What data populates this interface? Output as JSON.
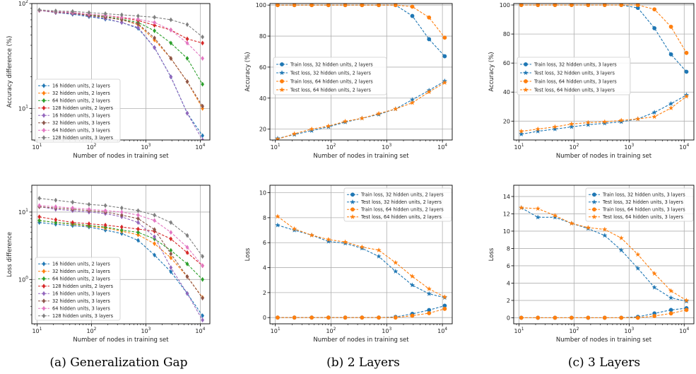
{
  "captions": [
    "(a) Generalization Gap",
    "(b) 2 Layers",
    "(c) 3 Layers"
  ],
  "chart_data": [
    {
      "id": "acc-gap",
      "type": "line",
      "xlabel": "Number of nodes in training set",
      "ylabel": "Accuracy difference (%)",
      "xscale": "log",
      "yscale": "log",
      "xlim": [
        8,
        15000
      ],
      "ylim": [
        5,
        100
      ],
      "x_ticks": [
        "10^1",
        "10^2",
        "10^3",
        "10^4"
      ],
      "y_ticks": [
        "10^1",
        "10^2"
      ],
      "legend_position": "lower-left",
      "x": [
        11,
        22,
        45,
        90,
        180,
        360,
        720,
        1440,
        2880,
        5760,
        11000
      ],
      "series": [
        {
          "name": "16 hidden units, 2 layers",
          "color": "#1f77b4",
          "marker": "diamond",
          "values": [
            86,
            82,
            79,
            75,
            71,
            66,
            58,
            38,
            20,
            9,
            5.5
          ]
        },
        {
          "name": "32 hidden units, 2 layers",
          "color": "#ff7f0e",
          "marker": "diamond",
          "values": [
            86,
            83,
            81,
            77,
            74,
            70,
            63,
            45,
            30,
            18,
            10
          ]
        },
        {
          "name": "64 hidden units, 2 layers",
          "color": "#2ca02c",
          "marker": "diamond",
          "values": [
            86,
            83,
            81,
            78,
            75,
            71,
            66,
            55,
            42,
            30,
            17
          ]
        },
        {
          "name": "128 hidden units, 2 layers",
          "color": "#d62728",
          "marker": "diamond",
          "values": [
            86,
            84,
            82,
            79,
            77,
            73,
            69,
            62,
            56,
            46,
            42
          ]
        },
        {
          "name": "16 hidden units, 3 layers",
          "color": "#9467bd",
          "marker": "diamond",
          "values": [
            86,
            82,
            80,
            76,
            72,
            66,
            59,
            38,
            20,
            9,
            5
          ]
        },
        {
          "name": "32 hidden units, 3 layers",
          "color": "#8c564b",
          "marker": "diamond",
          "values": [
            86,
            83,
            81,
            77,
            74,
            70,
            64,
            47,
            30,
            18,
            10.5
          ]
        },
        {
          "name": "64 hidden units, 3 layers",
          "color": "#e377c2",
          "marker": "diamond",
          "values": [
            86,
            84,
            82,
            79,
            77,
            74,
            71,
            66,
            56,
            42,
            30
          ]
        },
        {
          "name": "128 hidden units, 3 layers",
          "color": "#7f7f7f",
          "marker": "diamond",
          "values": [
            87,
            85,
            84,
            82,
            80,
            78,
            76,
            74,
            70,
            63,
            48
          ]
        }
      ]
    },
    {
      "id": "acc-2",
      "type": "line",
      "xlabel": "Number of nodes in training set",
      "ylabel": "Accuracy (%)",
      "xscale": "log",
      "xlim": [
        8,
        15000
      ],
      "ylim": [
        13,
        101
      ],
      "x_ticks": [
        "10^1",
        "10^2",
        "10^3",
        "10^4"
      ],
      "y_ticks": [
        20,
        40,
        60,
        80,
        100
      ],
      "legend_position": "center-left",
      "x": [
        11,
        22,
        45,
        90,
        180,
        360,
        720,
        1440,
        2880,
        5760,
        11000
      ],
      "series": [
        {
          "name": "Train loss, 32 hidden units, 2 layers",
          "color": "#1f77b4",
          "marker": "circle",
          "values": [
            100,
            100,
            100,
            100,
            100,
            100,
            100,
            100,
            93,
            78,
            67
          ]
        },
        {
          "name": "Test loss, 32 hidden units, 2 layers",
          "color": "#1f77b4",
          "marker": "star",
          "values": [
            14,
            16.5,
            19,
            21.5,
            24.5,
            27,
            29.5,
            33,
            39,
            45,
            51
          ]
        },
        {
          "name": "Train loss, 64 hidden units, 2 layers",
          "color": "#ff7f0e",
          "marker": "circle",
          "values": [
            100,
            100,
            100,
            100,
            100,
            100,
            100,
            100,
            99,
            92,
            79
          ]
        },
        {
          "name": "Test loss, 64 hidden units, 2 layers",
          "color": "#ff7f0e",
          "marker": "star",
          "values": [
            13.5,
            17,
            20,
            22,
            25,
            27,
            30,
            33,
            37,
            44,
            50
          ]
        }
      ]
    },
    {
      "id": "acc-3",
      "type": "line",
      "xlabel": "Number of nodes in training set",
      "ylabel": "Accuracy (%)",
      "xscale": "log",
      "xlim": [
        8,
        15000
      ],
      "ylim": [
        7,
        101
      ],
      "x_ticks": [
        "10^1",
        "10^2",
        "10^3",
        "10^4"
      ],
      "y_ticks": [
        20,
        40,
        60,
        80,
        100
      ],
      "legend_position": "center-left",
      "x": [
        11,
        22,
        45,
        90,
        180,
        360,
        720,
        1440,
        2880,
        5760,
        11000
      ],
      "series": [
        {
          "name": "Train loss, 32 hidden units, 3 layers",
          "color": "#1f77b4",
          "marker": "circle",
          "values": [
            100,
            100,
            100,
            100,
            100,
            100,
            100,
            98,
            84,
            66,
            54
          ]
        },
        {
          "name": "Test loss, 32 hidden units, 3 layers",
          "color": "#1f77b4",
          "marker": "star",
          "values": [
            11,
            13,
            14.5,
            16,
            17.5,
            18.5,
            19.5,
            21.5,
            26,
            32,
            38
          ]
        },
        {
          "name": "Train loss, 64 hidden units, 3 layers",
          "color": "#ff7f0e",
          "marker": "circle",
          "values": [
            100,
            100,
            100,
            100,
            100,
            100,
            100,
            100,
            97,
            85,
            67
          ]
        },
        {
          "name": "Test loss, 64 hidden units, 3 layers",
          "color": "#ff7f0e",
          "marker": "star",
          "values": [
            13,
            14.5,
            16,
            18,
            19,
            19.5,
            20.5,
            21.5,
            23,
            29,
            37
          ]
        }
      ]
    },
    {
      "id": "loss-gap",
      "type": "line",
      "xlabel": "Number of nodes in training set",
      "ylabel": "Loss difference",
      "xscale": "log",
      "yscale": "log",
      "xlim": [
        8,
        15000
      ],
      "ylim": [
        0.22,
        25
      ],
      "x_ticks": [
        "10^1",
        "10^2",
        "10^3",
        "10^4"
      ],
      "y_ticks": [
        "10^0",
        "10^1"
      ],
      "legend_position": "lower-left",
      "x": [
        11,
        22,
        45,
        90,
        180,
        360,
        720,
        1440,
        2880,
        5760,
        11000
      ],
      "series": [
        {
          "name": "16 hidden units, 2 layers",
          "color": "#1f77b4",
          "marker": "diamond",
          "values": [
            7,
            6.6,
            6.3,
            6,
            5.4,
            4.8,
            3.8,
            2.3,
            1.3,
            0.62,
            0.29
          ]
        },
        {
          "name": "32 hidden units, 2 layers",
          "color": "#ff7f0e",
          "marker": "diamond",
          "values": [
            7.5,
            7,
            6.6,
            6.2,
            5.8,
            5.2,
            4.6,
            3.4,
            2.1,
            1.1,
            0.54
          ]
        },
        {
          "name": "64 hidden units, 2 layers",
          "color": "#2ca02c",
          "marker": "diamond",
          "values": [
            7.5,
            7,
            6.7,
            6.3,
            6,
            5.4,
            5,
            4,
            2.7,
            1.7,
            1
          ]
        },
        {
          "name": "128 hidden units, 2 layers",
          "color": "#d62728",
          "marker": "diamond",
          "values": [
            8.5,
            7.7,
            7,
            6.7,
            6.4,
            6,
            5.6,
            5.2,
            4,
            2.5,
            1.6
          ]
        },
        {
          "name": "16 hidden units, 3 layers",
          "color": "#9467bd",
          "marker": "diamond",
          "values": [
            12,
            11,
            10.5,
            10,
            9.5,
            8.5,
            7,
            4.3,
            1.5,
            0.62,
            0.25
          ]
        },
        {
          "name": "32 hidden units, 3 layers",
          "color": "#8c564b",
          "marker": "diamond",
          "values": [
            12,
            11.5,
            11,
            10.5,
            10,
            9,
            8,
            5.5,
            2.4,
            1.1,
            0.53
          ]
        },
        {
          "name": "64 hidden units, 3 layers",
          "color": "#e377c2",
          "marker": "diamond",
          "values": [
            12.5,
            12,
            11.5,
            11,
            10.5,
            10,
            9,
            7.5,
            5,
            3,
            1.6
          ]
        },
        {
          "name": "128 hidden units, 3 layers",
          "color": "#7f7f7f",
          "marker": "diamond",
          "values": [
            16,
            15,
            14,
            13,
            12.5,
            11.5,
            10.5,
            9,
            7,
            4.5,
            2.2
          ]
        }
      ]
    },
    {
      "id": "loss-2",
      "type": "line",
      "xlabel": "Number of nodes in training set",
      "ylabel": "Loss",
      "xscale": "log",
      "xlim": [
        8,
        15000
      ],
      "ylim": [
        -0.5,
        10.6
      ],
      "x_ticks": [
        "10^1",
        "10^2",
        "10^3",
        "10^4"
      ],
      "y_ticks": [
        0,
        2,
        4,
        6,
        8,
        10
      ],
      "legend_position": "top-right",
      "x": [
        11,
        22,
        45,
        90,
        180,
        360,
        720,
        1440,
        2880,
        5760,
        11000
      ],
      "series": [
        {
          "name": "Train loss, 32 hidden units, 2 layers",
          "color": "#1f77b4",
          "marker": "circle",
          "values": [
            0,
            0,
            0,
            0,
            0,
            0,
            0,
            0.05,
            0.3,
            0.6,
            0.95
          ]
        },
        {
          "name": "Test loss, 32 hidden units, 2 layers",
          "color": "#1f77b4",
          "marker": "star",
          "values": [
            7.4,
            7,
            6.6,
            6.1,
            5.95,
            5.55,
            4.9,
            3.7,
            2.6,
            1.9,
            1.6
          ]
        },
        {
          "name": "Train loss, 64 hidden units, 2 layers",
          "color": "#ff7f0e",
          "marker": "circle",
          "values": [
            0,
            0,
            0,
            0,
            0,
            0,
            0,
            0,
            0.15,
            0.35,
            0.7
          ]
        },
        {
          "name": "Test loss, 64 hidden units, 2 layers",
          "color": "#ff7f0e",
          "marker": "star",
          "values": [
            8.1,
            7.1,
            6.6,
            6.25,
            6.05,
            5.65,
            5.4,
            4.4,
            3.3,
            2.3,
            1.65
          ]
        }
      ]
    },
    {
      "id": "loss-3",
      "type": "line",
      "xlabel": "Number of nodes in training set",
      "ylabel": "Loss",
      "xscale": "log",
      "xlim": [
        8,
        15000
      ],
      "ylim": [
        -0.7,
        15.3
      ],
      "x_ticks": [
        "10^1",
        "10^2",
        "10^3",
        "10^4"
      ],
      "y_ticks": [
        0,
        2,
        4,
        6,
        8,
        10,
        12,
        14
      ],
      "legend_position": "top-right",
      "x": [
        11,
        22,
        45,
        90,
        180,
        360,
        720,
        1440,
        2880,
        5760,
        11000
      ],
      "series": [
        {
          "name": "Train loss, 32 hidden units, 3 layers",
          "color": "#1f77b4",
          "marker": "circle",
          "values": [
            0,
            0,
            0,
            0,
            0,
            0,
            0,
            0.1,
            0.5,
            0.9,
            1.1
          ]
        },
        {
          "name": "Test loss, 32 hidden units, 3 layers",
          "color": "#1f77b4",
          "marker": "star",
          "values": [
            12.7,
            11.6,
            11.6,
            10.9,
            10.3,
            9.5,
            7.8,
            5.7,
            3.5,
            2.3,
            1.9
          ]
        },
        {
          "name": "Train loss, 64 hidden units, 3 layers",
          "color": "#ff7f0e",
          "marker": "circle",
          "values": [
            0,
            0,
            0,
            0,
            0,
            0,
            0,
            0,
            0.2,
            0.5,
            0.9
          ]
        },
        {
          "name": "Test loss, 64 hidden units, 3 layers",
          "color": "#ff7f0e",
          "marker": "star",
          "values": [
            12.7,
            12.6,
            11.8,
            10.9,
            10.4,
            10.2,
            9.2,
            7.3,
            5.1,
            3.1,
            2
          ]
        }
      ]
    }
  ]
}
